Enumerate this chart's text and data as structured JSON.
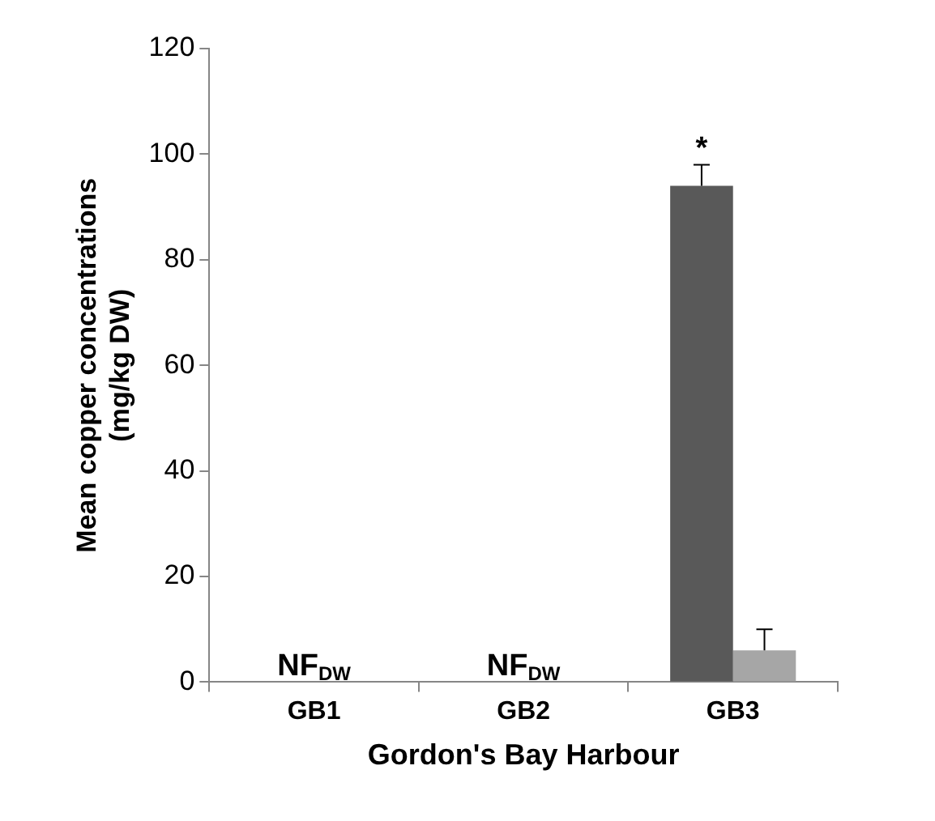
{
  "chart_data": {
    "type": "bar",
    "xlabel": "Gordon's Bay Harbour",
    "ylabel": "Mean copper concentrations\n(mg/kg DW)",
    "categories": [
      "GB1",
      "GB2",
      "GB3"
    ],
    "series": [
      {
        "color": "#595959",
        "values": [
          null,
          null,
          94
        ],
        "errors": [
          null,
          null,
          4
        ],
        "value_labels": [
          "NF$_{DW}$",
          "NF$_{DW}$",
          "*"
        ]
      },
      {
        "color": "#a6a6a6",
        "values": [
          null,
          null,
          6
        ],
        "errors": [
          null,
          null,
          4
        ]
      }
    ],
    "ylim": [
      0,
      120
    ],
    "yticks": [
      0,
      20,
      40,
      60,
      80,
      100,
      120
    ]
  }
}
